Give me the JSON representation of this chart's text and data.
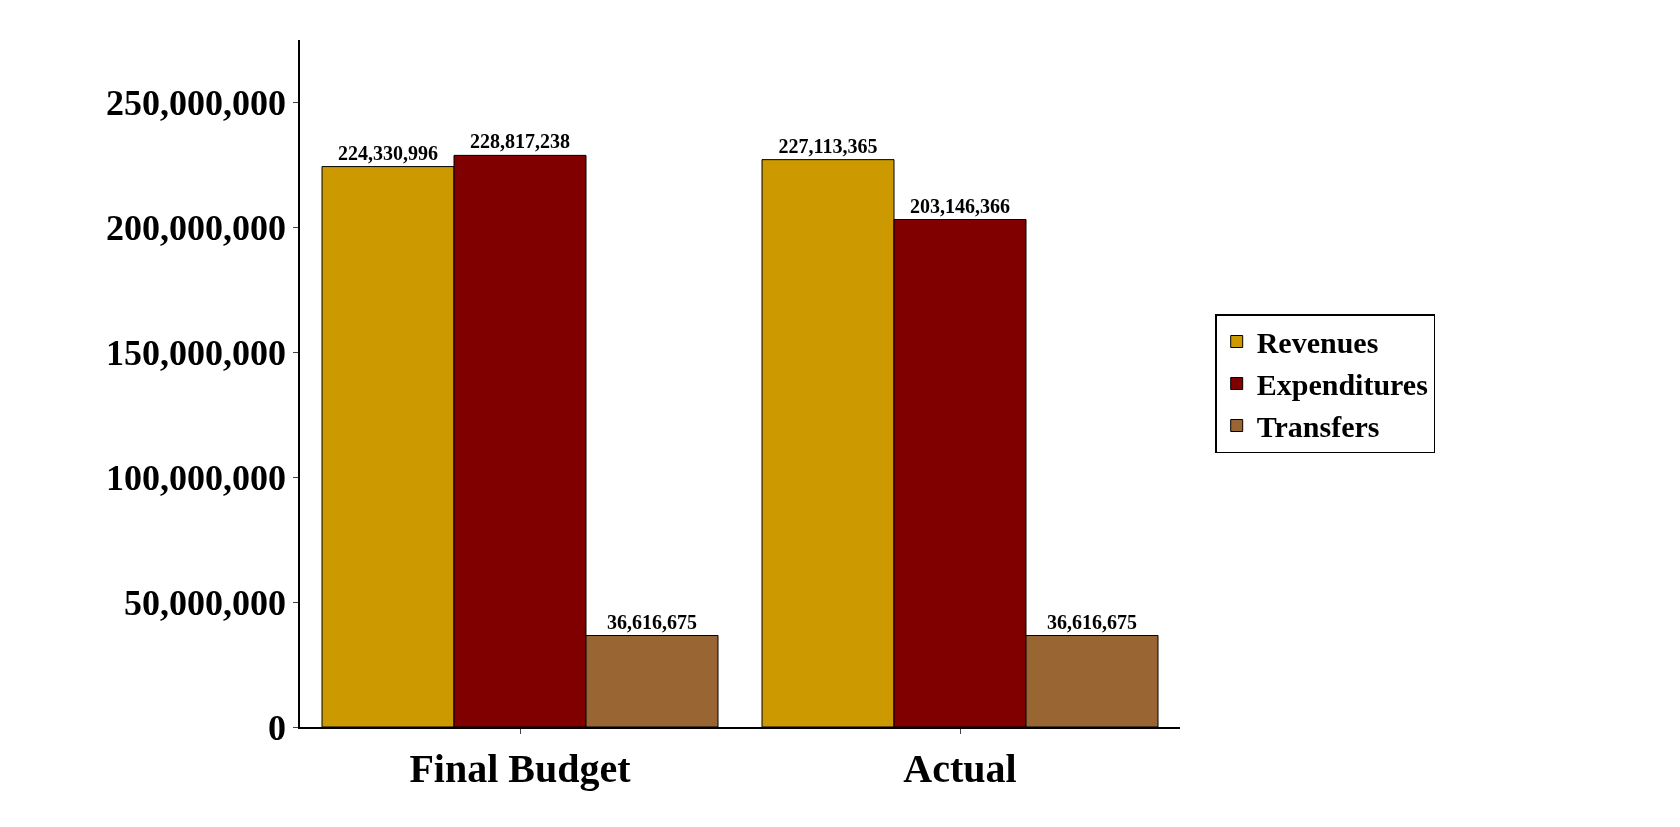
{
  "chart_data": {
    "type": "bar",
    "categories": [
      "Final Budget",
      "Actual"
    ],
    "series": [
      {
        "name": "Revenues",
        "color": "#cc9900",
        "values": [
          224330996,
          227113365
        ],
        "value_labels": [
          "224,330,996",
          "227,113,365"
        ]
      },
      {
        "name": "Expenditures",
        "color": "#800000",
        "values": [
          228817238,
          203146366
        ],
        "value_labels": [
          "228,817,238",
          "203,146,366"
        ]
      },
      {
        "name": "Transfers",
        "color": "#996633",
        "values": [
          36616675,
          36616675
        ],
        "value_labels": [
          "36,616,675",
          "36,616,675"
        ]
      }
    ],
    "ylim": [
      0,
      275000000
    ],
    "yticks": [
      {
        "value": 0,
        "label": "0"
      },
      {
        "value": 50000000,
        "label": "50,000,000"
      },
      {
        "value": 100000000,
        "label": "100,000,000"
      },
      {
        "value": 150000000,
        "label": "150,000,000"
      },
      {
        "value": 200000000,
        "label": "200,000,000"
      },
      {
        "value": 250000000,
        "label": "250,000,000"
      }
    ],
    "grid": false,
    "legend": "right"
  }
}
